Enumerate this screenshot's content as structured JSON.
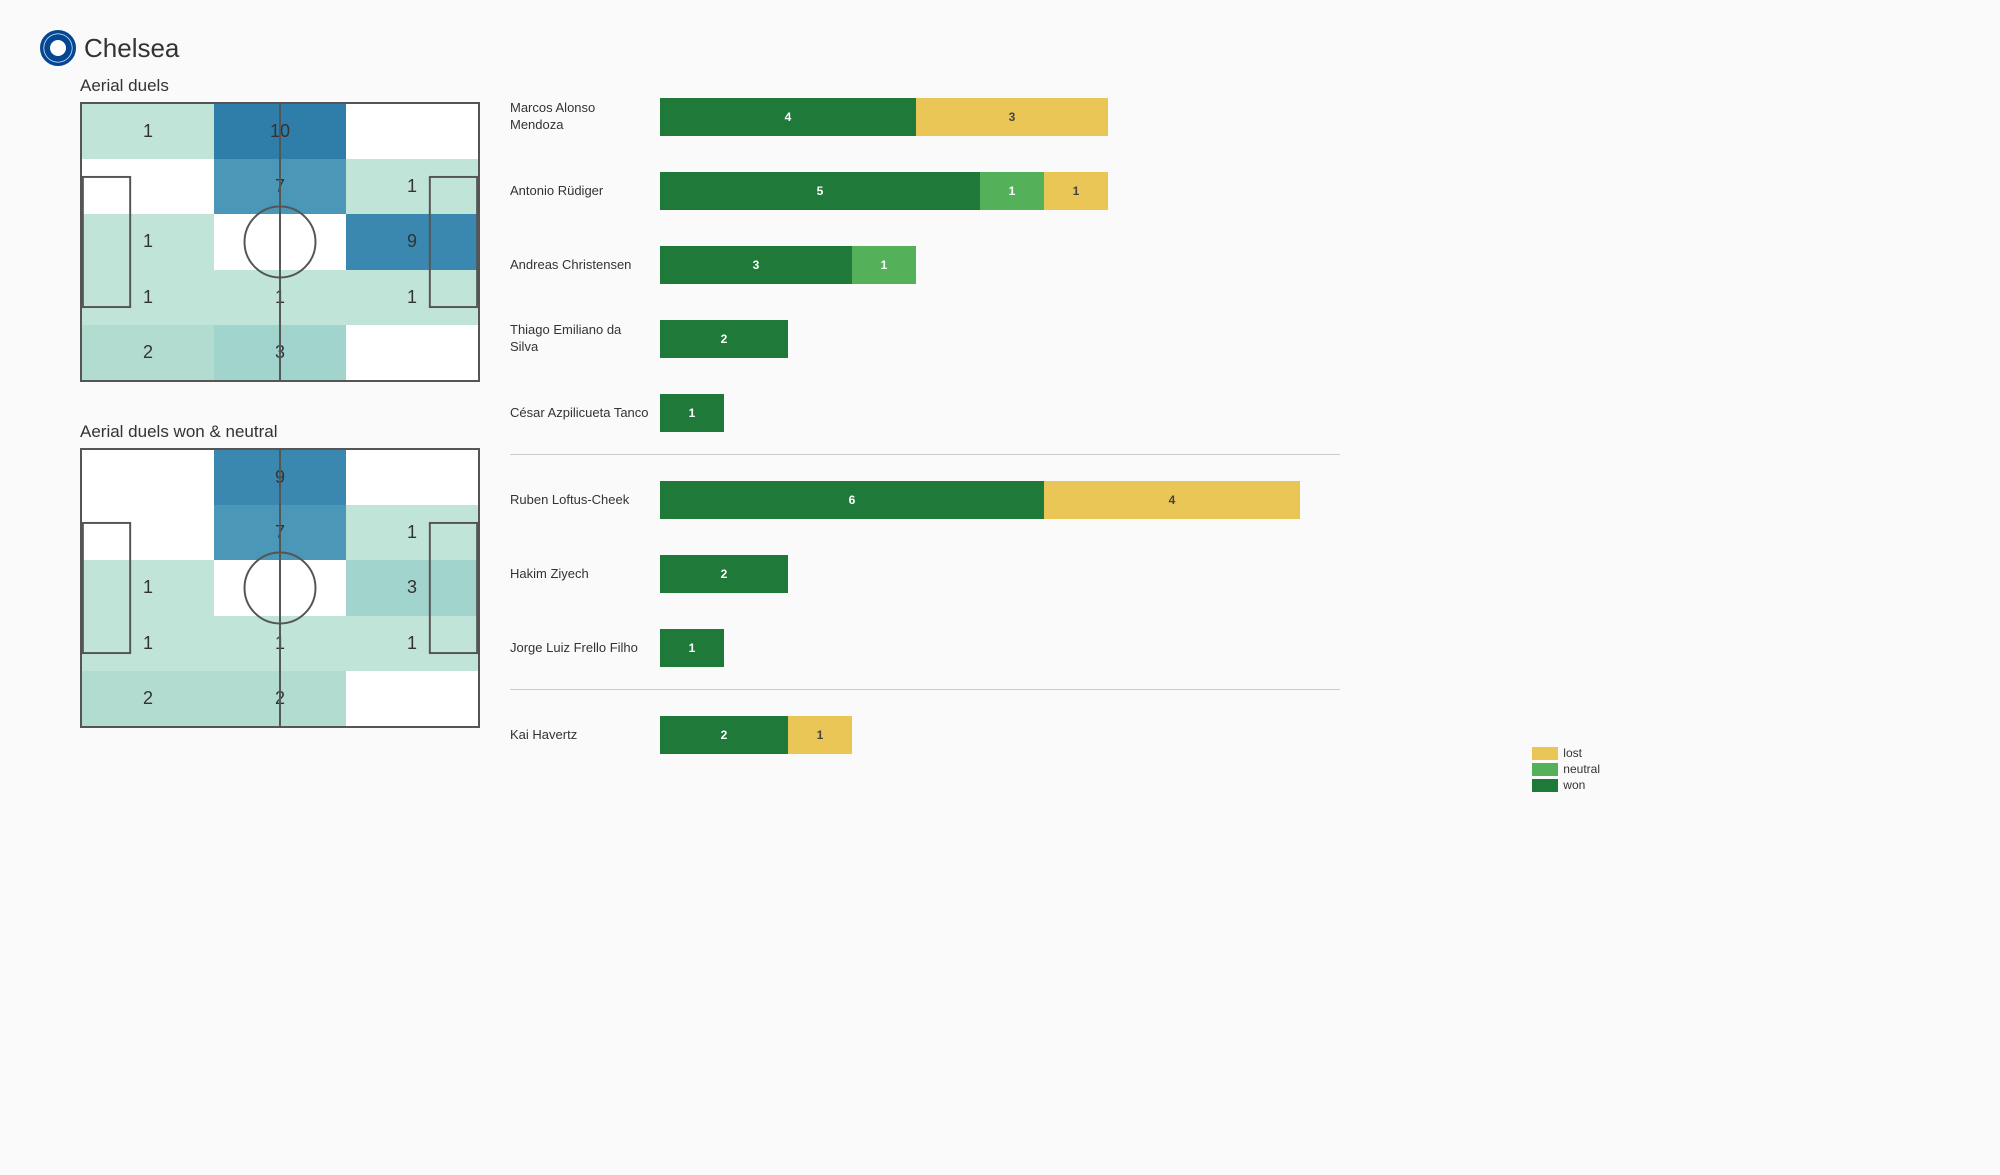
{
  "team": "Chelsea",
  "pitches": {
    "duels": {
      "title": "Aerial duels",
      "cells": [
        {
          "v": 1,
          "c": "#c1e4d9"
        },
        {
          "v": 10,
          "c": "#2f7eaa"
        },
        {
          "v": null,
          "c": "#ffffff"
        },
        {
          "v": null,
          "c": "#ffffff"
        },
        {
          "v": 7,
          "c": "#4a97b8"
        },
        {
          "v": 1,
          "c": "#c1e4d9"
        },
        {
          "v": 1,
          "c": "#c1e4d9"
        },
        {
          "v": null,
          "c": "#ffffff"
        },
        {
          "v": 9,
          "c": "#3a88b0"
        },
        {
          "v": 1,
          "c": "#c1e4d9"
        },
        {
          "v": 1,
          "c": "#c1e4d9"
        },
        {
          "v": 1,
          "c": "#c1e4d9"
        },
        {
          "v": 2,
          "c": "#b2dccf"
        },
        {
          "v": 3,
          "c": "#a0d4cc"
        },
        {
          "v": null,
          "c": "#ffffff"
        }
      ]
    },
    "won": {
      "title": "Aerial duels won & neutral",
      "cells": [
        {
          "v": null,
          "c": "#ffffff"
        },
        {
          "v": 9,
          "c": "#3a88b0"
        },
        {
          "v": null,
          "c": "#ffffff"
        },
        {
          "v": null,
          "c": "#ffffff"
        },
        {
          "v": 7,
          "c": "#4a97b8"
        },
        {
          "v": 1,
          "c": "#c1e4d9"
        },
        {
          "v": 1,
          "c": "#c1e4d9"
        },
        {
          "v": null,
          "c": "#ffffff"
        },
        {
          "v": 3,
          "c": "#a0d4cc"
        },
        {
          "v": 1,
          "c": "#c1e4d9"
        },
        {
          "v": 1,
          "c": "#c1e4d9"
        },
        {
          "v": 1,
          "c": "#c1e4d9"
        },
        {
          "v": 2,
          "c": "#b2dccf"
        },
        {
          "v": 2,
          "c": "#b2dccf"
        },
        {
          "v": null,
          "c": "#ffffff"
        }
      ]
    }
  },
  "barChart": {
    "maxValue": 10,
    "maxWidthPx": 640,
    "colors": {
      "won": "#1f7a3a",
      "neutral": "#54b159",
      "lost": "#e9c656"
    },
    "groups": [
      {
        "players": [
          {
            "name": "Marcos  Alonso Mendoza",
            "won": 4,
            "neutral": 0,
            "lost": 3
          },
          {
            "name": "Antonio Rüdiger",
            "won": 5,
            "neutral": 1,
            "lost": 1
          },
          {
            "name": "Andreas Christensen",
            "won": 3,
            "neutral": 1,
            "lost": 0
          },
          {
            "name": "Thiago Emiliano da Silva",
            "won": 2,
            "neutral": 0,
            "lost": 0
          },
          {
            "name": "César Azpilicueta Tanco",
            "won": 1,
            "neutral": 0,
            "lost": 0
          }
        ]
      },
      {
        "players": [
          {
            "name": "Ruben Loftus-Cheek",
            "won": 6,
            "neutral": 0,
            "lost": 4
          },
          {
            "name": "Hakim Ziyech",
            "won": 2,
            "neutral": 0,
            "lost": 0
          },
          {
            "name": "Jorge Luiz Frello Filho",
            "won": 1,
            "neutral": 0,
            "lost": 0
          }
        ]
      },
      {
        "players": [
          {
            "name": "Kai Havertz",
            "won": 2,
            "neutral": 0,
            "lost": 1
          }
        ]
      }
    ]
  },
  "legend": {
    "items": [
      {
        "label": "lost",
        "key": "lost"
      },
      {
        "label": "neutral",
        "key": "neutral"
      },
      {
        "label": "won",
        "key": "won"
      }
    ]
  }
}
